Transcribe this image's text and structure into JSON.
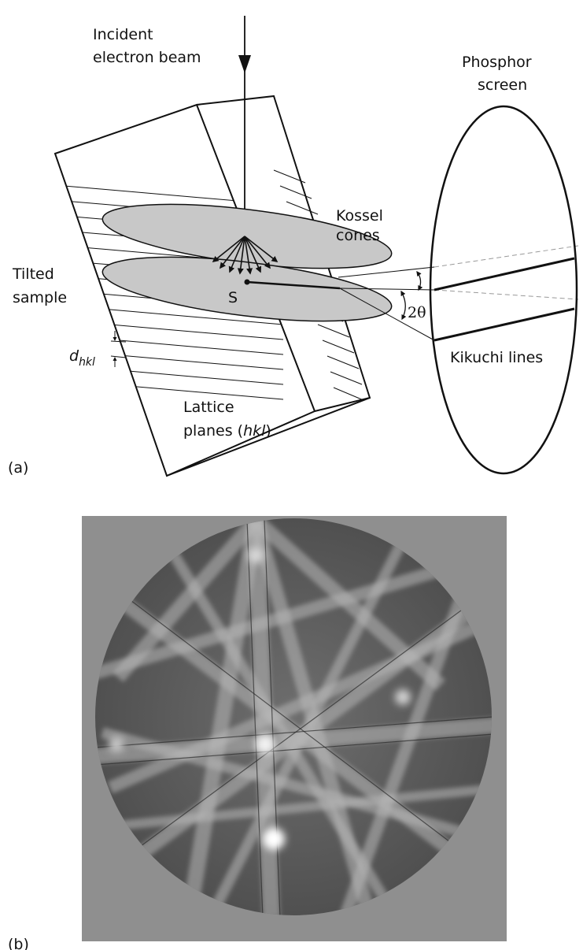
{
  "panel_a": {
    "panel_label": "(a)",
    "labels": {
      "incident_line1": "Incident",
      "incident_line2": "electron beam",
      "phosphor_line1": "Phosphor",
      "phosphor_line2": "screen",
      "kossel_line1": "Kossel",
      "kossel_line2": "cones",
      "tilted_line1": "Tilted",
      "tilted_line2": "sample",
      "source_point": "S",
      "two_theta": "2θ",
      "d_symbol": "d",
      "d_subscript": "hkl",
      "kikuchi": "Kikuchi lines",
      "lattice_line1": "Lattice",
      "lattice_line2_prefix": "planes (",
      "lattice_line2_italic": "hkl",
      "lattice_line2_suffix": ")"
    }
  },
  "panel_b": {
    "panel_label": "(b)",
    "pattern": "Kikuchi diffraction pattern"
  },
  "colors": {
    "line": "#111111",
    "cone_fill": "#c8c8c8",
    "pattern_bg": "#8f8f8f",
    "pattern_disc": "#5a5a5a"
  }
}
